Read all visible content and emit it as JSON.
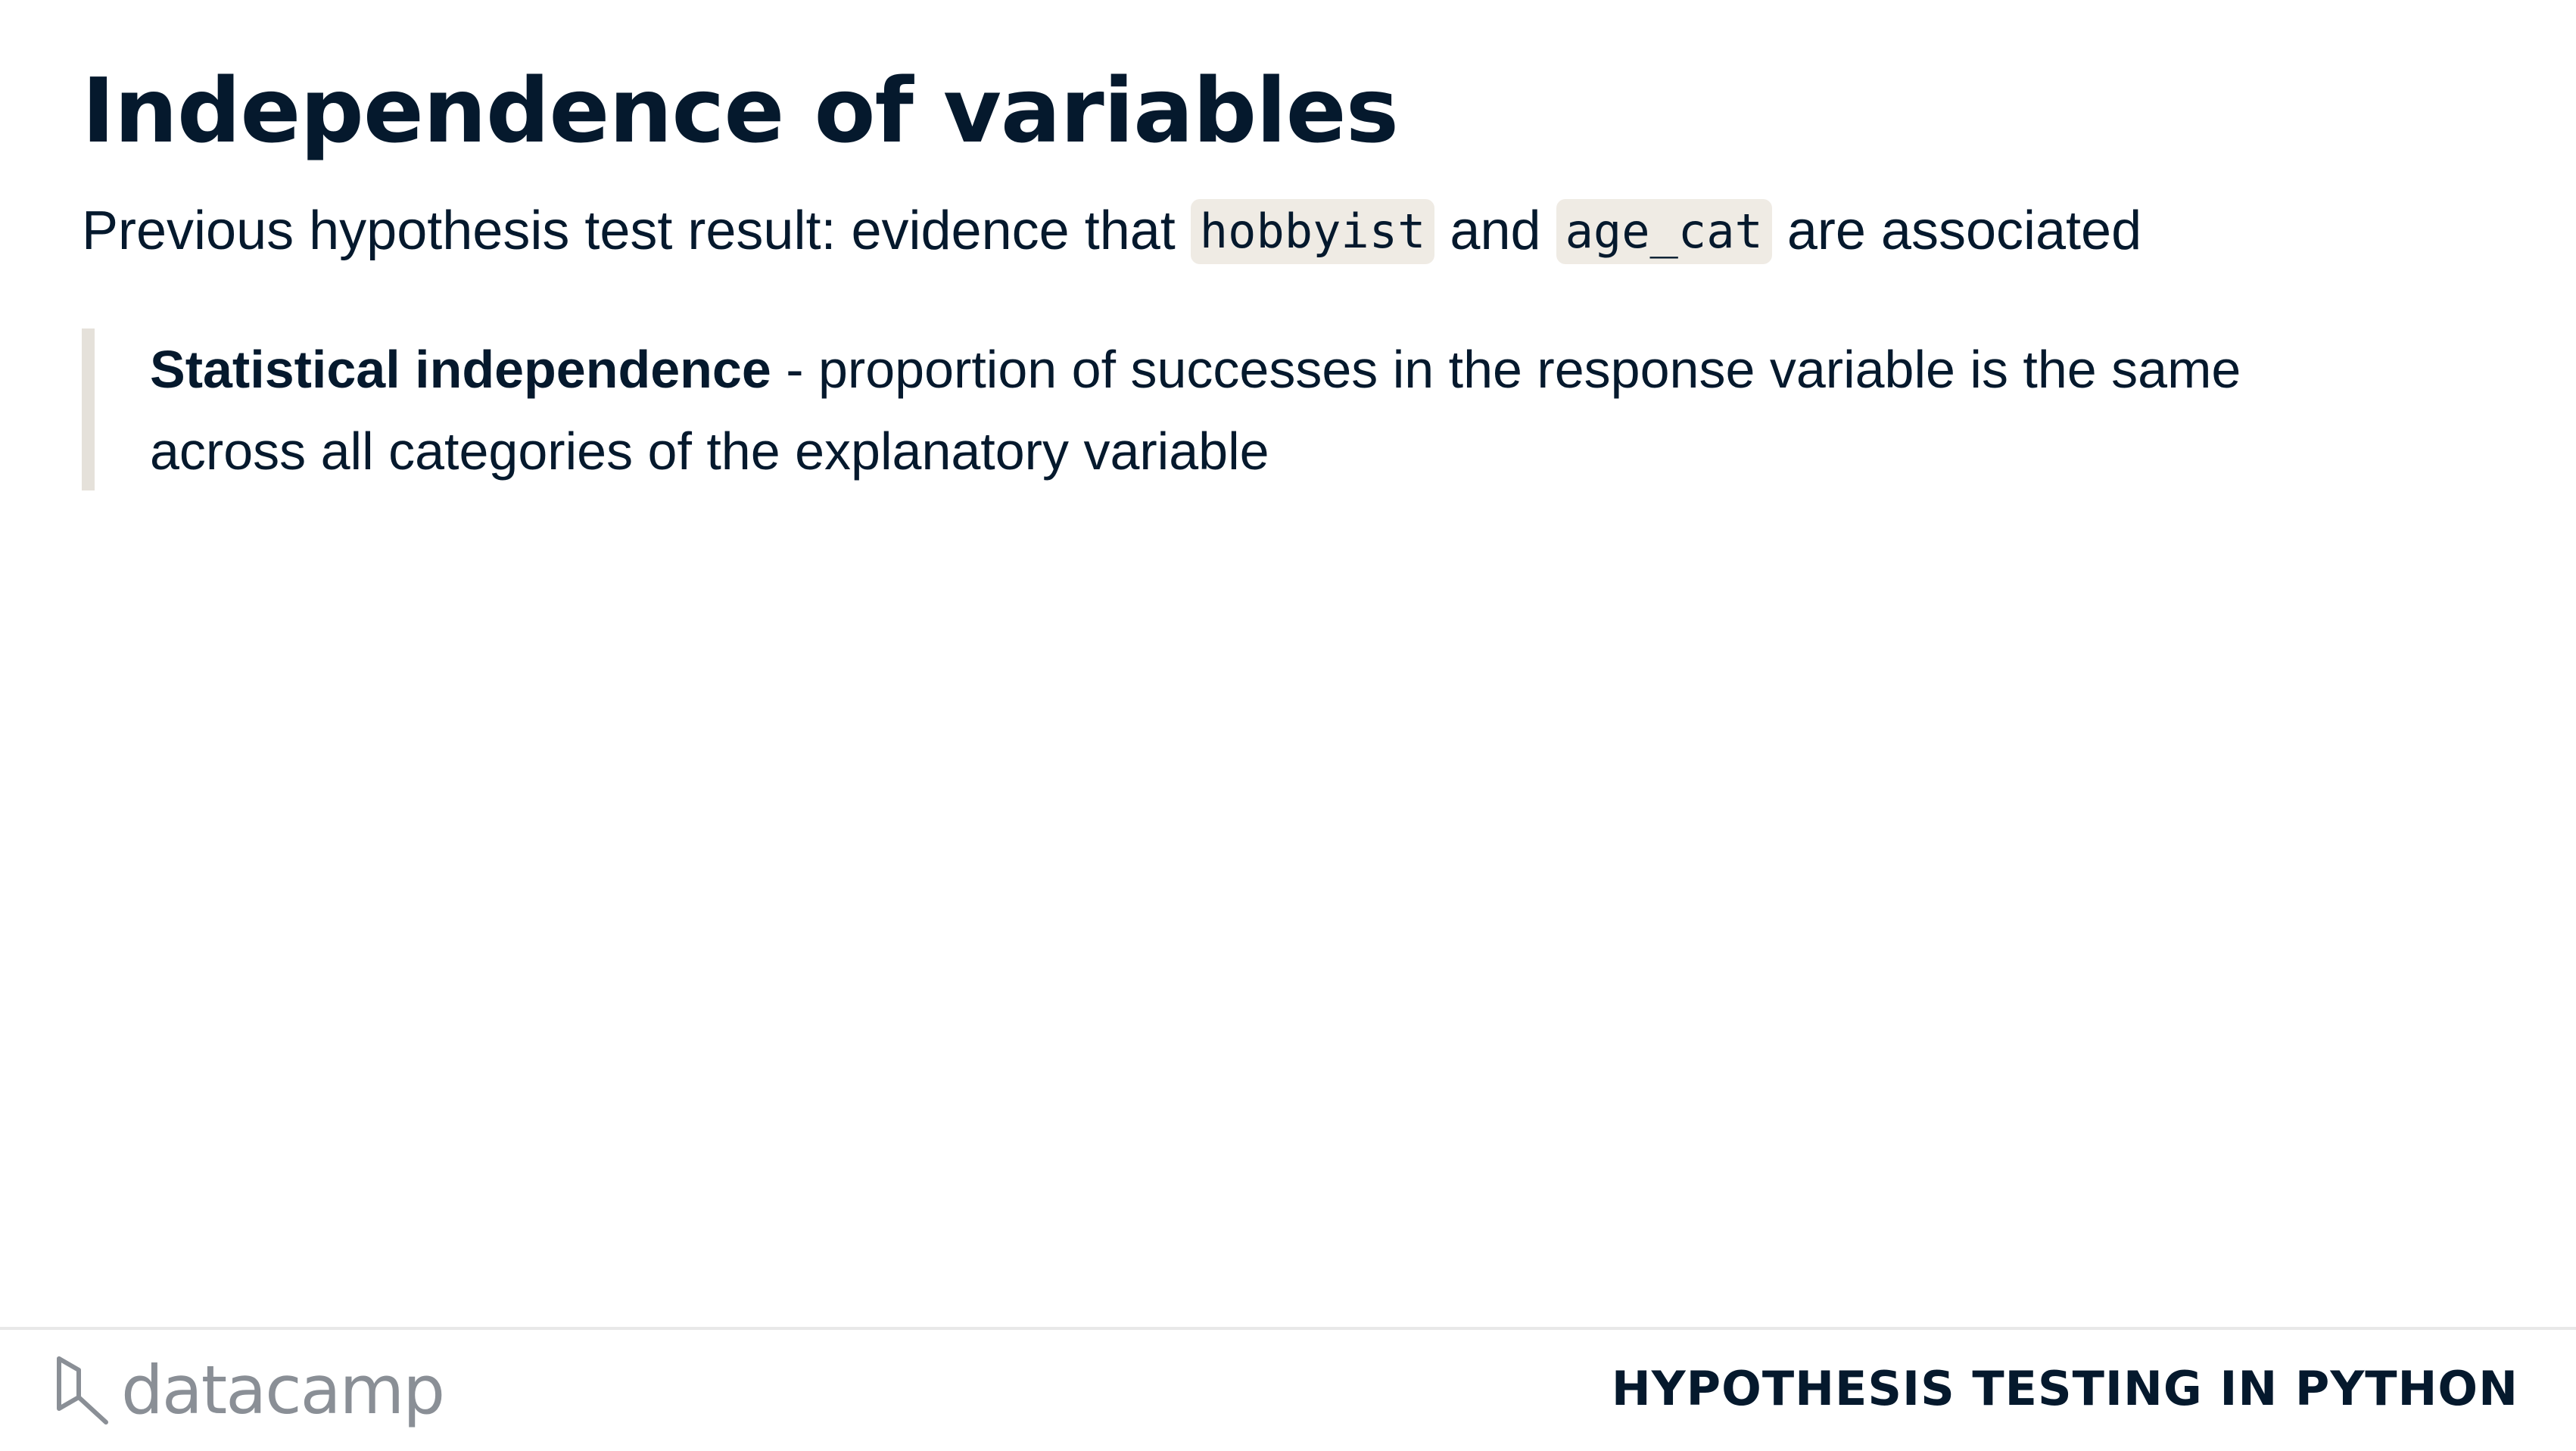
{
  "slide": {
    "title": "Independence of variables",
    "lead": {
      "prefix": "Previous hypothesis test result: evidence that ",
      "code1": "hobbyist",
      "middle": " and ",
      "code2": "age_cat",
      "suffix": "  are associated"
    },
    "definition": {
      "term": "Statistical independence",
      "text": " - proportion of successes in the response variable is the same across all categories of the explanatory variable"
    }
  },
  "footer": {
    "brand_name": "datacamp",
    "course_title": "HYPOTHESIS TESTING IN PYTHON"
  },
  "colors": {
    "text": "#05192d",
    "code_background": "#efebe4",
    "quote_bar": "#e5e1da",
    "brand_grey": "#8a8f96"
  },
  "icons": {
    "brand": "datacamp-logo-icon"
  }
}
